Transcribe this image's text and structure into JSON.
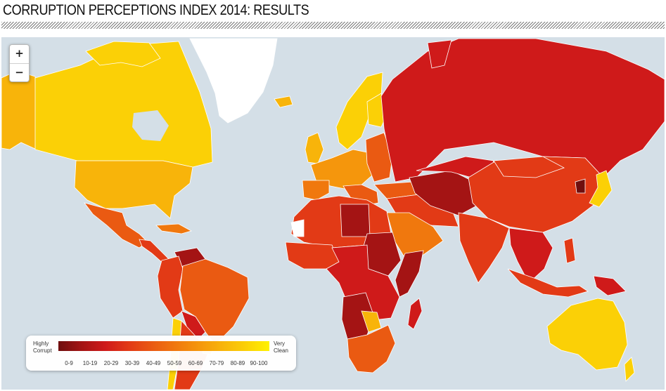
{
  "title": "CORRUPTION PERCEPTIONS INDEX 2014: RESULTS",
  "zoom": {
    "in_label": "+",
    "out_label": "−"
  },
  "legend": {
    "low_label_line1": "Highly",
    "low_label_line2": "Corrupt",
    "high_label_line1": "Very",
    "high_label_line2": "Clean",
    "ranges": [
      "0-9",
      "10-19",
      "20-29",
      "30-39",
      "40-49",
      "50-59",
      "60-69",
      "70-79",
      "80-89",
      "90-100"
    ],
    "colors": [
      "#6f0e0e",
      "#a41414",
      "#cf1a1a",
      "#e23a16",
      "#ea5a12",
      "#f0780e",
      "#f5960c",
      "#f8b40a",
      "#fbd006",
      "#fff200"
    ]
  },
  "colors": {
    "ocean": "#d4dfe7",
    "ice": "#ffffff",
    "border": "#ffffff"
  }
}
